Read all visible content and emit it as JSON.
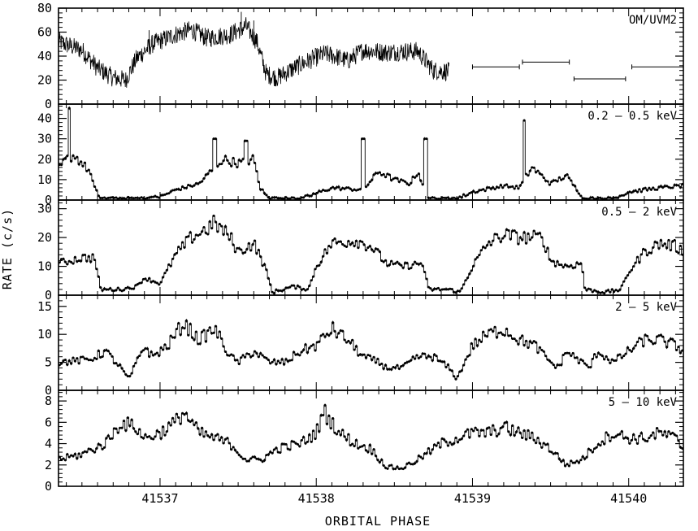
{
  "chart_data": {
    "type": "line",
    "xlabel": "ORBITAL PHASE",
    "ylabel": "RATE (c/s)",
    "xlim": [
      41536.35,
      41540.35
    ],
    "x_ticks": [
      41537,
      41538,
      41539,
      41540
    ],
    "x_tick_labels": [
      "41537",
      "41538",
      "41539",
      "41540"
    ],
    "color": "#000000",
    "panels": [
      {
        "label": "OM/UVM2",
        "ylim": [
          0,
          80
        ],
        "y_ticks": [
          0,
          20,
          40,
          60,
          80
        ],
        "y_tick_labels": [
          "0",
          "20",
          "40",
          "60",
          "80"
        ],
        "style": "noisy",
        "data_end": 41538.85,
        "profile": [
          [
            41536.35,
            52
          ],
          [
            41536.5,
            45
          ],
          [
            41536.6,
            30
          ],
          [
            41536.7,
            22
          ],
          [
            41536.78,
            20
          ],
          [
            41536.85,
            38
          ],
          [
            41536.95,
            50
          ],
          [
            41537.1,
            58
          ],
          [
            41537.2,
            62
          ],
          [
            41537.3,
            55
          ],
          [
            41537.45,
            58
          ],
          [
            41537.55,
            65
          ],
          [
            41537.62,
            52
          ],
          [
            41537.68,
            25
          ],
          [
            41537.75,
            22
          ],
          [
            41537.9,
            33
          ],
          [
            41538.05,
            42
          ],
          [
            41538.12,
            40
          ],
          [
            41538.2,
            36
          ],
          [
            41538.3,
            45
          ],
          [
            41538.45,
            43
          ],
          [
            41538.55,
            44
          ],
          [
            41538.65,
            44
          ],
          [
            41538.75,
            28
          ],
          [
            41538.85,
            27
          ]
        ],
        "gaps": [
          [
            41538.85,
            41540.35
          ]
        ],
        "segments": [
          {
            "x": [
              41539.0,
              41539.3
            ],
            "y": 31
          },
          {
            "x": [
              41539.32,
              41539.62
            ],
            "y": 35
          },
          {
            "x": [
              41539.65,
              41539.98
            ],
            "y": 21
          },
          {
            "x": [
              41540.02,
              41540.35
            ],
            "y": 31
          }
        ]
      },
      {
        "label": "0.2 – 0.5 keV",
        "ylim": [
          0,
          47
        ],
        "y_ticks": [
          0,
          10,
          20,
          30,
          40
        ],
        "y_tick_labels": [
          "0",
          "10",
          "20",
          "30",
          "40"
        ],
        "style": "binned",
        "profile": [
          [
            41536.35,
            15
          ],
          [
            41536.4,
            20
          ],
          [
            41536.45,
            22
          ],
          [
            41536.5,
            18
          ],
          [
            41536.55,
            14
          ],
          [
            41536.58,
            6
          ],
          [
            41536.62,
            0.5
          ],
          [
            41536.9,
            0.5
          ],
          [
            41537.0,
            1.5
          ],
          [
            41537.1,
            5
          ],
          [
            41537.25,
            8
          ],
          [
            41537.4,
            20
          ],
          [
            41537.5,
            18
          ],
          [
            41537.6,
            20
          ],
          [
            41537.64,
            6
          ],
          [
            41537.7,
            0.5
          ],
          [
            41537.9,
            0.5
          ],
          [
            41538.1,
            6
          ],
          [
            41538.3,
            5
          ],
          [
            41538.4,
            14
          ],
          [
            41538.5,
            10
          ],
          [
            41538.6,
            8
          ],
          [
            41538.65,
            14
          ],
          [
            41538.72,
            0.5
          ],
          [
            41538.9,
            0.5
          ],
          [
            41539.0,
            4
          ],
          [
            41539.2,
            7
          ],
          [
            41539.3,
            6
          ],
          [
            41539.38,
            16
          ],
          [
            41539.5,
            8
          ],
          [
            41539.6,
            12
          ],
          [
            41539.68,
            4
          ],
          [
            41539.72,
            0.5
          ],
          [
            41539.9,
            0.5
          ],
          [
            41540.0,
            4
          ],
          [
            41540.2,
            6
          ],
          [
            41540.35,
            7
          ]
        ],
        "spikes": [
          [
            41536.42,
            45
          ],
          [
            41537.35,
            30
          ],
          [
            41537.55,
            29
          ],
          [
            41538.3,
            30
          ],
          [
            41538.7,
            30
          ],
          [
            41539.33,
            39
          ]
        ]
      },
      {
        "label": "0.5 – 2 keV",
        "ylim": [
          0,
          33
        ],
        "y_ticks": [
          0,
          10,
          20,
          30
        ],
        "y_tick_labels": [
          "0",
          "10",
          "20",
          "30"
        ],
        "style": "binned",
        "profile": [
          [
            41536.35,
            11
          ],
          [
            41536.5,
            13
          ],
          [
            41536.58,
            13
          ],
          [
            41536.62,
            2
          ],
          [
            41536.75,
            2
          ],
          [
            41536.85,
            3
          ],
          [
            41536.9,
            6
          ],
          [
            41537.0,
            4
          ],
          [
            41537.1,
            14
          ],
          [
            41537.2,
            20
          ],
          [
            41537.3,
            23
          ],
          [
            41537.35,
            25
          ],
          [
            41537.45,
            20
          ],
          [
            41537.5,
            15
          ],
          [
            41537.6,
            18
          ],
          [
            41537.67,
            10
          ],
          [
            41537.72,
            1
          ],
          [
            41537.85,
            3
          ],
          [
            41537.95,
            2
          ],
          [
            41538.0,
            10
          ],
          [
            41538.1,
            18
          ],
          [
            41538.25,
            19
          ],
          [
            41538.35,
            17
          ],
          [
            41538.45,
            11
          ],
          [
            41538.55,
            10
          ],
          [
            41538.68,
            11
          ],
          [
            41538.72,
            2
          ],
          [
            41538.85,
            2
          ],
          [
            41538.92,
            1
          ],
          [
            41539.0,
            10
          ],
          [
            41539.1,
            18
          ],
          [
            41539.2,
            21
          ],
          [
            41539.3,
            20
          ],
          [
            41539.45,
            20
          ],
          [
            41539.5,
            12
          ],
          [
            41539.6,
            10
          ],
          [
            41539.7,
            11
          ],
          [
            41539.72,
            2
          ],
          [
            41539.85,
            1
          ],
          [
            41539.95,
            2
          ],
          [
            41540.0,
            8
          ],
          [
            41540.1,
            15
          ],
          [
            41540.2,
            18
          ],
          [
            41540.3,
            17
          ],
          [
            41540.35,
            15
          ]
        ]
      },
      {
        "label": "2 – 5 keV",
        "ylim": [
          0,
          17
        ],
        "y_ticks": [
          0,
          5,
          10,
          15
        ],
        "y_tick_labels": [
          "0",
          "5",
          "10",
          "15"
        ],
        "style": "binned",
        "profile": [
          [
            41536.35,
            5
          ],
          [
            41536.55,
            5.5
          ],
          [
            41536.65,
            7
          ],
          [
            41536.75,
            4
          ],
          [
            41536.8,
            2
          ],
          [
            41536.9,
            8
          ],
          [
            41536.95,
            6
          ],
          [
            41537.05,
            8
          ],
          [
            41537.15,
            12
          ],
          [
            41537.25,
            9
          ],
          [
            41537.35,
            11
          ],
          [
            41537.45,
            6
          ],
          [
            41537.5,
            5
          ],
          [
            41537.6,
            7
          ],
          [
            41537.7,
            5
          ],
          [
            41537.8,
            5
          ],
          [
            41537.9,
            7
          ],
          [
            41538.0,
            8
          ],
          [
            41538.1,
            11
          ],
          [
            41538.2,
            9
          ],
          [
            41538.3,
            6
          ],
          [
            41538.4,
            5
          ],
          [
            41538.45,
            4
          ],
          [
            41538.55,
            4
          ],
          [
            41538.65,
            6
          ],
          [
            41538.75,
            6
          ],
          [
            41538.85,
            4
          ],
          [
            41538.9,
            2
          ],
          [
            41539.0,
            8
          ],
          [
            41539.1,
            10
          ],
          [
            41539.2,
            11
          ],
          [
            41539.3,
            9
          ],
          [
            41539.4,
            8
          ],
          [
            41539.5,
            5
          ],
          [
            41539.55,
            4
          ],
          [
            41539.6,
            7
          ],
          [
            41539.7,
            5
          ],
          [
            41539.75,
            4
          ],
          [
            41539.8,
            7
          ],
          [
            41539.9,
            5
          ],
          [
            41540.0,
            7
          ],
          [
            41540.1,
            9
          ],
          [
            41540.2,
            9
          ],
          [
            41540.3,
            8
          ],
          [
            41540.35,
            7
          ]
        ]
      },
      {
        "label": "5 – 10 keV",
        "ylim": [
          0,
          9
        ],
        "y_ticks": [
          0,
          2,
          4,
          6,
          8
        ],
        "y_tick_labels": [
          "0",
          "2",
          "4",
          "6",
          "8"
        ],
        "style": "binned",
        "profile": [
          [
            41536.35,
            2.5
          ],
          [
            41536.5,
            3
          ],
          [
            41536.65,
            4
          ],
          [
            41536.75,
            6
          ],
          [
            41536.85,
            5.5
          ],
          [
            41536.9,
            4.5
          ],
          [
            41537.0,
            5
          ],
          [
            41537.1,
            6
          ],
          [
            41537.15,
            7
          ],
          [
            41537.25,
            5
          ],
          [
            41537.35,
            4.5
          ],
          [
            41537.45,
            4
          ],
          [
            41537.55,
            2.5
          ],
          [
            41537.65,
            2.5
          ],
          [
            41537.75,
            3.5
          ],
          [
            41537.9,
            4
          ],
          [
            41538.0,
            5
          ],
          [
            41538.05,
            7
          ],
          [
            41538.15,
            5
          ],
          [
            41538.25,
            4
          ],
          [
            41538.35,
            3.5
          ],
          [
            41538.45,
            1.8
          ],
          [
            41538.55,
            1.7
          ],
          [
            41538.65,
            2.5
          ],
          [
            41538.8,
            4
          ],
          [
            41538.9,
            4.5
          ],
          [
            41539.0,
            5
          ],
          [
            41539.1,
            5
          ],
          [
            41539.2,
            5.5
          ],
          [
            41539.3,
            5
          ],
          [
            41539.4,
            4.5
          ],
          [
            41539.5,
            3.5
          ],
          [
            41539.6,
            2
          ],
          [
            41539.7,
            2.5
          ],
          [
            41539.8,
            4
          ],
          [
            41539.9,
            5
          ],
          [
            41540.0,
            4.5
          ],
          [
            41540.1,
            4.5
          ],
          [
            41540.2,
            5
          ],
          [
            41540.3,
            4.5
          ],
          [
            41540.35,
            3.5
          ]
        ]
      }
    ]
  }
}
